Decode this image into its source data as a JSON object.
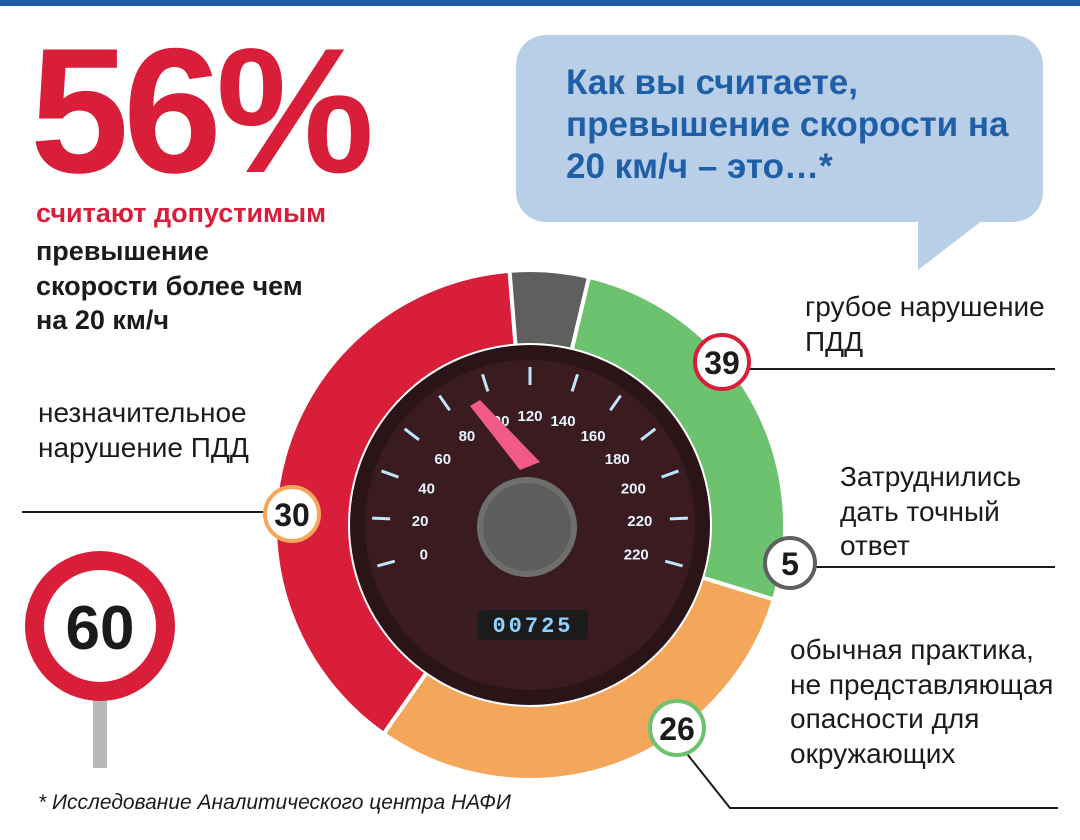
{
  "headline": {
    "percent": "56%",
    "line_red": "считают допустимым",
    "line_dark": "превышение скорости более чем на 20 км/ч"
  },
  "question": "Как вы считаете, превышение скорости на 20 км/ч – это…*",
  "footnote": "* Исследование Аналитического центра НАФИ",
  "speedometer": {
    "ticks": [
      "0",
      "20",
      "40",
      "60",
      "80",
      "100",
      "120",
      "140",
      "160",
      "180",
      "200",
      "220",
      "220"
    ],
    "odometer": "00725"
  },
  "road_sign": {
    "value": "60"
  },
  "chart_data": {
    "type": "pie",
    "variant": "donut",
    "slices": [
      {
        "label": "грубое нарушение ПДД",
        "value": 39,
        "color": "#d81e38"
      },
      {
        "label": "Затруднились дать точный ответ",
        "value": 5,
        "color": "#5f5f5f"
      },
      {
        "label": "обычная практика, не представляющая опасности для окружающих",
        "value": 26,
        "color": "#6cc26f"
      },
      {
        "label": "незначительное нарушение ПДД",
        "value": 30,
        "color": "#f4a65a"
      }
    ]
  },
  "colors": {
    "accent_red": "#d81e38",
    "accent_blue": "#1f5fa8",
    "bubble": "#b9cfe8"
  }
}
